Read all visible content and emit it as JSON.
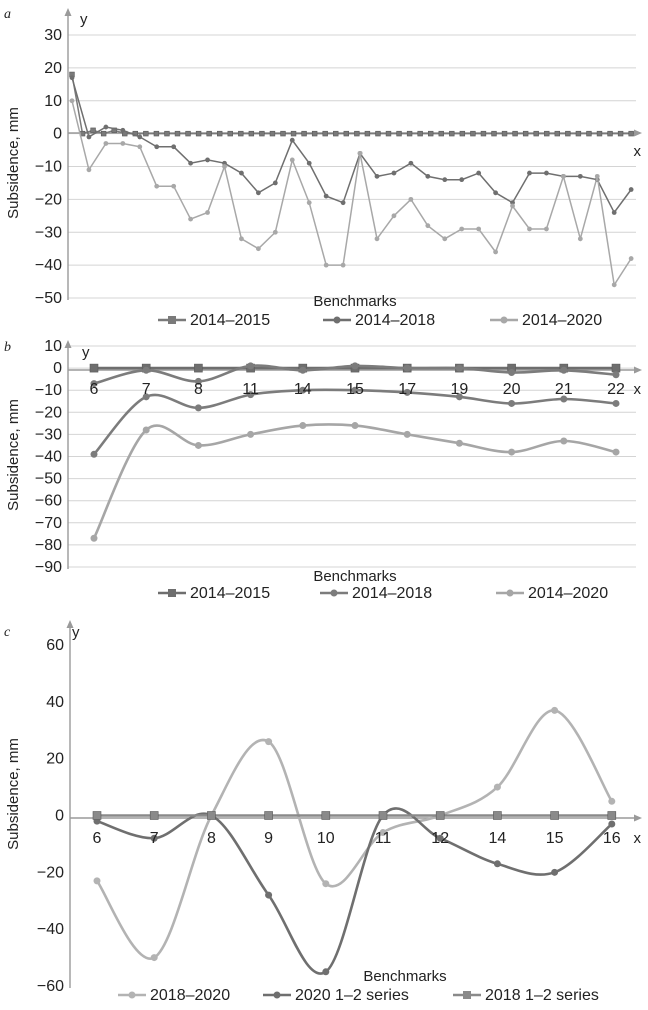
{
  "chart_data": [
    {
      "panel_label": "a",
      "type": "line",
      "xlabel": "Benchmarks",
      "ylabel": "Subsidence, mm",
      "x_axis_name": "x",
      "y_axis_name": "y",
      "ylim": [
        -50,
        30
      ],
      "yticks": [
        "30",
        "20",
        "10",
        "0",
        "−10",
        "−20",
        "−30",
        "−40",
        "−50"
      ],
      "ytick_values": [
        30,
        20,
        10,
        0,
        -10,
        -20,
        -30,
        -40,
        -50
      ],
      "x_index_count": 54,
      "grid": true,
      "legend_position": "bottom",
      "series": [
        {
          "name": "2014–2015",
          "color": "#7a7a7a",
          "marker": "square",
          "values": [
            18,
            0,
            1,
            0,
            1,
            0,
            0,
            0,
            0,
            0,
            0,
            0,
            0,
            0,
            0,
            0,
            0,
            0,
            0,
            0,
            0,
            0,
            0,
            0,
            0,
            0,
            0,
            0,
            0,
            0,
            0,
            0,
            0,
            0,
            0,
            0,
            0,
            0,
            0,
            0,
            0,
            0,
            0,
            0,
            0,
            0,
            0,
            0,
            0,
            0,
            0,
            0,
            0,
            0
          ]
        },
        {
          "name": "2014–2018",
          "color": "#6f6f6f",
          "marker": "circle",
          "values": [
            17,
            -1,
            2,
            1,
            -1,
            -4,
            -4,
            -9,
            -8,
            -9,
            -12,
            -18,
            -15,
            -2,
            -9,
            -19,
            -21,
            -6,
            -13,
            -12,
            -9,
            -13,
            -14,
            -14,
            -12,
            -18,
            -21,
            -12,
            -12,
            -13,
            -13,
            -14,
            -24,
            -17,
            0,
            0,
            0,
            0,
            0,
            0,
            0,
            0,
            0,
            0,
            0,
            0,
            0,
            0,
            0,
            0,
            0,
            0,
            0,
            0
          ]
        },
        {
          "name": "2014–2020",
          "color": "#a8a8a8",
          "marker": "circle",
          "values": [
            10,
            -11,
            -3,
            -3,
            -4,
            -16,
            -16,
            -26,
            -24,
            -10,
            -32,
            -35,
            -30,
            -8,
            -21,
            -40,
            -40,
            -6,
            -32,
            -25,
            -20,
            -28,
            -32,
            -29,
            -29,
            -36,
            -22,
            -29,
            -29,
            -13,
            -32,
            -13,
            -46,
            -38,
            0,
            0,
            0,
            0,
            0,
            0,
            0,
            0,
            0,
            0,
            0,
            0,
            0,
            0,
            0,
            0,
            0,
            0,
            0,
            0
          ]
        }
      ]
    },
    {
      "panel_label": "b",
      "type": "line",
      "xlabel": "Benchmarks",
      "ylabel": "Subsidence, mm",
      "x_axis_name": "x",
      "y_axis_name": "y",
      "categories": [
        "6",
        "7",
        "8",
        "11",
        "14",
        "15",
        "17",
        "19",
        "20",
        "21",
        "22"
      ],
      "ylim": [
        -90,
        10
      ],
      "yticks": [
        "10",
        "0",
        "−10",
        "−20",
        "−30",
        "−40",
        "−50",
        "−60",
        "−70",
        "−80",
        "−90"
      ],
      "ytick_values": [
        10,
        0,
        -10,
        -20,
        -30,
        -40,
        -50,
        -60,
        -70,
        -80,
        -90
      ],
      "grid": true,
      "legend_position": "bottom",
      "series": [
        {
          "name": "2014–2015",
          "color": "#6e6e6e",
          "marker": "square",
          "values": [
            0,
            0,
            0,
            0,
            0,
            0,
            0,
            0,
            0,
            0,
            0
          ]
        },
        {
          "name": "2014–2018",
          "color": "#7c7c7c",
          "marker": "circle",
          "values": [
            -7,
            -1,
            -6,
            1,
            -1,
            1,
            0,
            0,
            -2,
            -1,
            -3
          ]
        },
        {
          "name": "2014–2020",
          "color": "#a6a6a6",
          "marker": "circle",
          "values": [
            -77,
            -28,
            -35,
            -30,
            -26,
            -26,
            -30,
            -34,
            -38,
            -33,
            -38
          ]
        },
        {
          "name": "",
          "color": "#7c7c7c",
          "marker": "circle",
          "values": [
            -39,
            -13,
            -18,
            -12,
            -10,
            -10,
            -11,
            -13,
            -16,
            -14,
            -16
          ]
        }
      ]
    },
    {
      "panel_label": "c",
      "type": "line",
      "xlabel": "Benchmarks",
      "ylabel": "Subsidence, mm",
      "x_axis_name": "x",
      "y_axis_name": "y",
      "categories": [
        "6",
        "7",
        "8",
        "9",
        "10",
        "11",
        "12",
        "14",
        "15",
        "16"
      ],
      "ylim": [
        -60,
        60
      ],
      "yticks": [
        "60",
        "40",
        "20",
        "0",
        "−20",
        "−40",
        "−60"
      ],
      "ytick_values": [
        60,
        40,
        20,
        0,
        -20,
        -40,
        -60
      ],
      "grid": false,
      "legend_position": "bottom",
      "series": [
        {
          "name": "2018–2020",
          "color": "#b3b3b3",
          "marker": "circle",
          "values": [
            -23,
            -50,
            0,
            26,
            -24,
            -6,
            0,
            10,
            37,
            5
          ]
        },
        {
          "name": "2020 1–2 series",
          "color": "#6f6f6f",
          "marker": "circle",
          "values": [
            -2,
            -8,
            0,
            -28,
            -55,
            0,
            -8,
            -17,
            -20,
            -3
          ]
        },
        {
          "name": "2018 1–2 series",
          "color": "#8a8a8a",
          "marker": "square",
          "values": [
            0,
            0,
            0,
            0,
            0,
            0,
            0,
            0,
            0,
            0
          ]
        }
      ]
    }
  ]
}
